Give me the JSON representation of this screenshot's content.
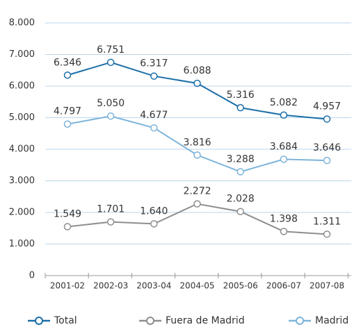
{
  "chart_data": {
    "type": "line",
    "categories": [
      "2001-02",
      "2002-03",
      "2003-04",
      "2004-05",
      "2005-06",
      "2006-07",
      "2007-08"
    ],
    "series": [
      {
        "name": "Total",
        "color": "#1b6ea8",
        "values": [
          6346,
          6751,
          6317,
          6088,
          5316,
          5082,
          4957
        ],
        "value_labels": [
          "6.346",
          "6.751",
          "6.317",
          "6.088",
          "5.316",
          "5.082",
          "4.957"
        ]
      },
      {
        "name": "Fuera de Madrid",
        "color": "#8e8e8e",
        "values": [
          1549,
          1701,
          1640,
          2272,
          2028,
          1398,
          1311
        ],
        "value_labels": [
          "1.549",
          "1.701",
          "1.640",
          "2.272",
          "2.028",
          "1.398",
          "1.311"
        ]
      },
      {
        "name": "Madrid",
        "color": "#7db4da",
        "values": [
          4797,
          5050,
          4677,
          3816,
          3288,
          3684,
          3646
        ],
        "value_labels": [
          "4.797",
          "5.050",
          "4.677",
          "3.816",
          "3.288",
          "3.684",
          "3.646"
        ]
      }
    ],
    "ylim": [
      0,
      8000
    ],
    "yticks": [
      0,
      {
        "value": 1000,
        "label": "1.000"
      },
      {
        "value": 2000,
        "label": "2.000"
      },
      {
        "value": 3000,
        "label": "3.000"
      },
      {
        "value": 4000,
        "label": "4.000"
      },
      {
        "value": 5000,
        "label": "5.000"
      },
      {
        "value": 6000,
        "label": "6.000"
      },
      {
        "value": 7000,
        "label": "7.000"
      },
      {
        "value": 8000,
        "label": "8.000"
      }
    ],
    "grid": true
  }
}
